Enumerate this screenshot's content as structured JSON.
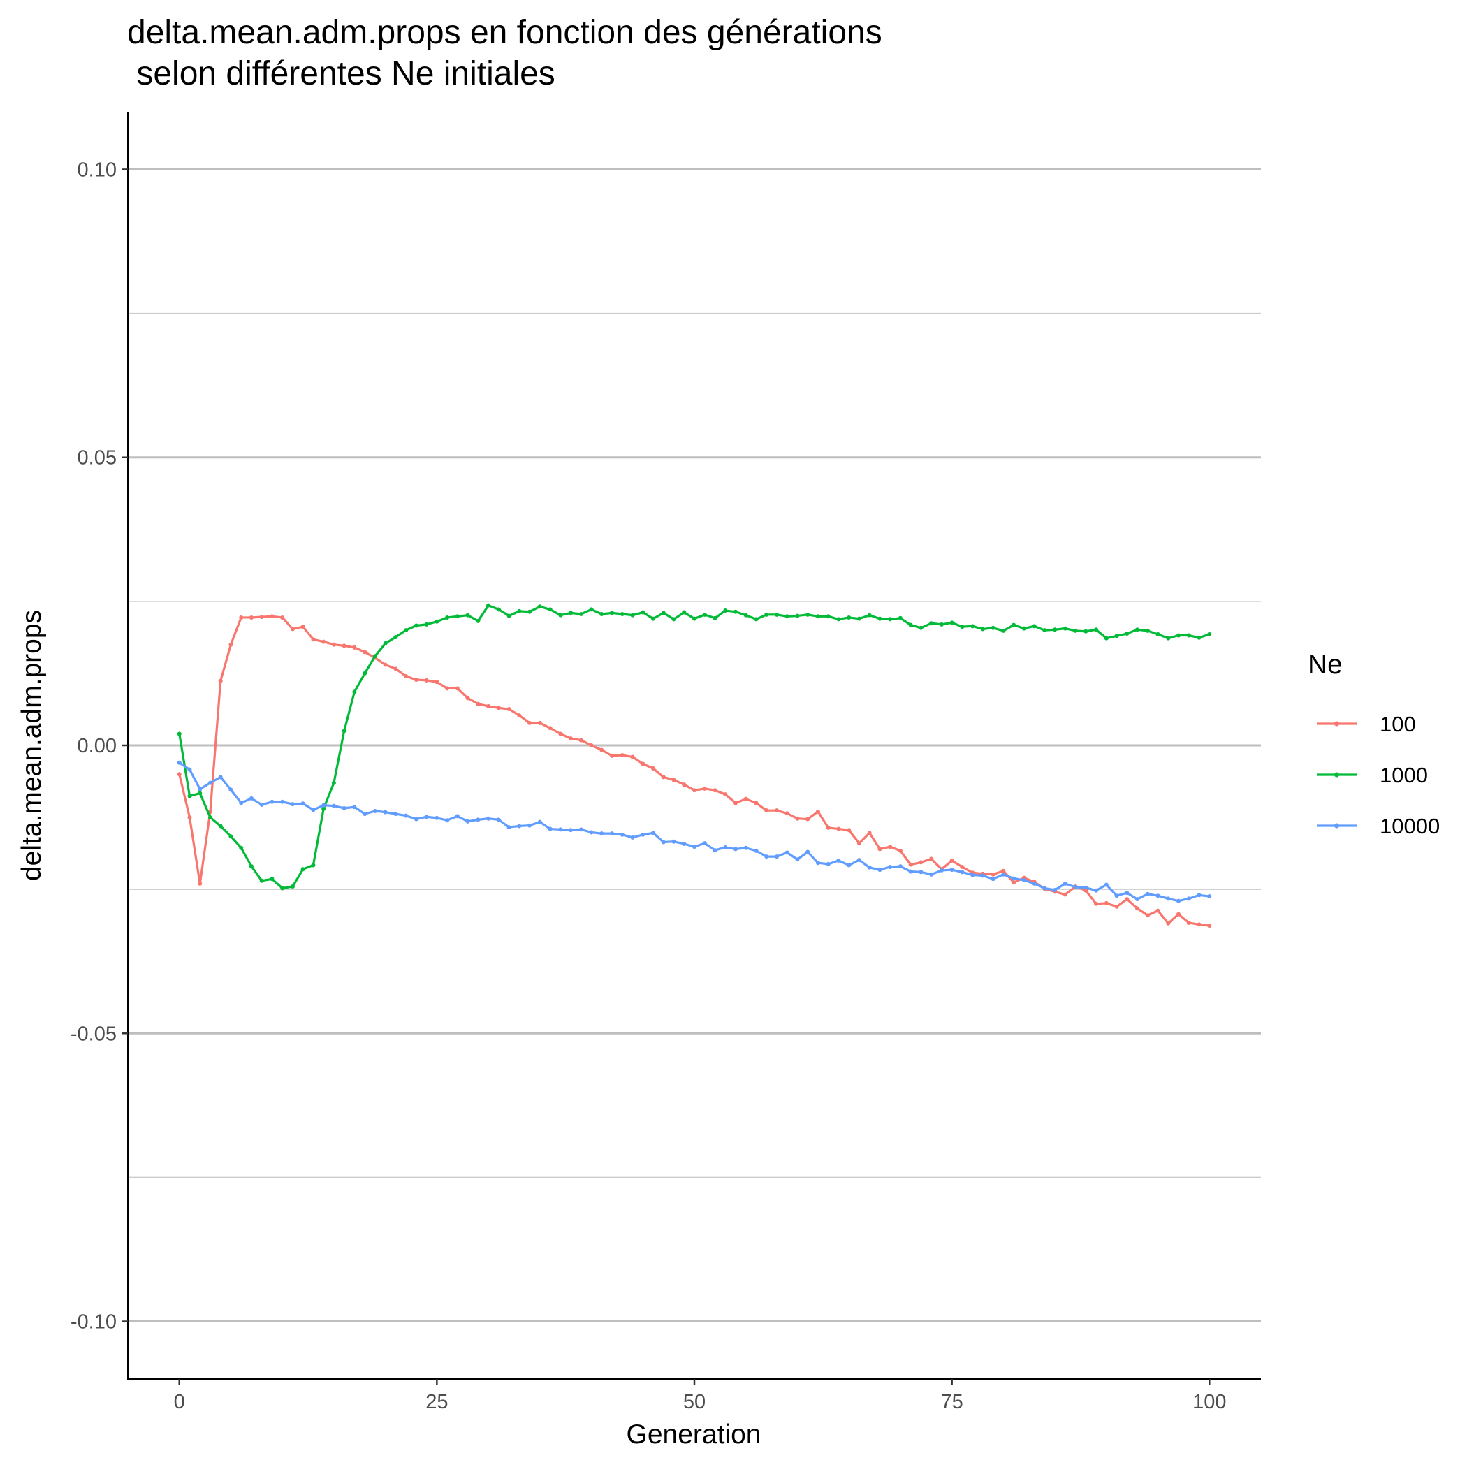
{
  "chart_data": {
    "type": "line",
    "title_lines": [
      "delta.mean.adm.props en fonction des générations",
      " selon différentes Ne initiales"
    ],
    "xlabel": "Generation",
    "ylabel": "delta.mean.adm.props",
    "xlim": [
      -5,
      105
    ],
    "ylim": [
      -0.11,
      0.11
    ],
    "x_ticks": [
      0,
      25,
      50,
      75,
      100
    ],
    "x_tick_labels": [
      "0",
      "25",
      "50",
      "75",
      "100"
    ],
    "y_ticks": [
      -0.1,
      -0.05,
      0.0,
      0.05,
      0.1
    ],
    "y_tick_labels": [
      "-0.10",
      "-0.05",
      "0.00",
      "0.05",
      "0.10"
    ],
    "y_minor_ticks": [
      -0.075,
      -0.025,
      0.025,
      0.075
    ],
    "grid": "horizontal",
    "legend": {
      "title": "Ne",
      "position": "right"
    },
    "x_start": 0,
    "x_step": 1,
    "series": [
      {
        "name": "100",
        "color": "#F8766D",
        "values": [
          -0.005,
          -0.0125,
          -0.024,
          -0.0115,
          0.0112,
          0.0175,
          0.0222,
          0.0222,
          0.0223,
          0.0224,
          0.0222,
          0.0202,
          0.0206,
          0.0184,
          0.018,
          0.0175,
          0.0173,
          0.017,
          0.0162,
          0.0152,
          0.014,
          0.0133,
          0.012,
          0.0114,
          0.0113,
          0.011,
          0.0099,
          0.0099,
          0.0082,
          0.0072,
          0.0068,
          0.0065,
          0.0063,
          0.0052,
          0.0039,
          0.0039,
          0.003,
          0.002,
          0.0012,
          0.0009,
          0.0,
          -0.0008,
          -0.0018,
          -0.0017,
          -0.002,
          -0.0032,
          -0.004,
          -0.0055,
          -0.006,
          -0.0068,
          -0.0078,
          -0.0075,
          -0.0078,
          -0.0085,
          -0.01,
          -0.0093,
          -0.01,
          -0.0113,
          -0.0113,
          -0.0118,
          -0.0127,
          -0.0128,
          -0.0115,
          -0.0143,
          -0.0145,
          -0.0147,
          -0.017,
          -0.0152,
          -0.018,
          -0.0176,
          -0.0183,
          -0.0207,
          -0.0203,
          -0.0197,
          -0.0215,
          -0.02,
          -0.0211,
          -0.0221,
          -0.0223,
          -0.0224,
          -0.0218,
          -0.0238,
          -0.023,
          -0.0237,
          -0.0249,
          -0.0254,
          -0.0259,
          -0.0245,
          -0.0252,
          -0.0275,
          -0.0274,
          -0.028,
          -0.0267,
          -0.0283,
          -0.0295,
          -0.0287,
          -0.0309,
          -0.0293,
          -0.0308,
          -0.0311,
          -0.0313
        ]
      },
      {
        "name": "1000",
        "color": "#00BA38",
        "values": [
          0.002,
          -0.0088,
          -0.0083,
          -0.0125,
          -0.014,
          -0.0158,
          -0.0178,
          -0.021,
          -0.0235,
          -0.0232,
          -0.0248,
          -0.0245,
          -0.0215,
          -0.0208,
          -0.011,
          -0.0065,
          0.0025,
          0.0093,
          0.0125,
          0.0155,
          0.0177,
          0.0188,
          0.02,
          0.0208,
          0.021,
          0.0215,
          0.0222,
          0.0224,
          0.0226,
          0.0216,
          0.0243,
          0.0236,
          0.0225,
          0.0233,
          0.0232,
          0.0241,
          0.0236,
          0.0226,
          0.023,
          0.0228,
          0.0236,
          0.0228,
          0.023,
          0.0228,
          0.0226,
          0.0231,
          0.022,
          0.023,
          0.0219,
          0.0231,
          0.022,
          0.0227,
          0.0221,
          0.0234,
          0.0232,
          0.0226,
          0.0219,
          0.0227,
          0.0227,
          0.0224,
          0.0225,
          0.0227,
          0.0224,
          0.0224,
          0.0219,
          0.0222,
          0.022,
          0.0226,
          0.022,
          0.0219,
          0.0221,
          0.0209,
          0.0204,
          0.0212,
          0.021,
          0.0213,
          0.0206,
          0.0207,
          0.0202,
          0.0204,
          0.0199,
          0.0209,
          0.0203,
          0.0207,
          0.02,
          0.0201,
          0.0203,
          0.0199,
          0.0198,
          0.0201,
          0.0186,
          0.019,
          0.0194,
          0.0201,
          0.0199,
          0.0193,
          0.0186,
          0.0191,
          0.0191,
          0.0187,
          0.0193
        ]
      },
      {
        "name": "10000",
        "color": "#619CFF",
        "values": [
          -0.003,
          -0.0042,
          -0.0076,
          -0.0065,
          -0.0055,
          -0.0077,
          -0.01,
          -0.0092,
          -0.0103,
          -0.0098,
          -0.0098,
          -0.0102,
          -0.0101,
          -0.0112,
          -0.0104,
          -0.0105,
          -0.0109,
          -0.0107,
          -0.0119,
          -0.0114,
          -0.0116,
          -0.0119,
          -0.0122,
          -0.0128,
          -0.0124,
          -0.0126,
          -0.013,
          -0.0123,
          -0.0132,
          -0.0129,
          -0.0127,
          -0.0129,
          -0.0142,
          -0.014,
          -0.0139,
          -0.0133,
          -0.0145,
          -0.0146,
          -0.0147,
          -0.0146,
          -0.0151,
          -0.0153,
          -0.0153,
          -0.0155,
          -0.016,
          -0.0155,
          -0.0152,
          -0.0168,
          -0.0167,
          -0.0171,
          -0.0176,
          -0.017,
          -0.0182,
          -0.0177,
          -0.018,
          -0.0178,
          -0.0183,
          -0.0193,
          -0.0193,
          -0.0186,
          -0.0198,
          -0.0185,
          -0.0204,
          -0.0206,
          -0.02,
          -0.0208,
          -0.0199,
          -0.0212,
          -0.0216,
          -0.0211,
          -0.021,
          -0.0219,
          -0.022,
          -0.0224,
          -0.0217,
          -0.0216,
          -0.022,
          -0.0225,
          -0.0226,
          -0.0232,
          -0.0224,
          -0.0231,
          -0.0234,
          -0.024,
          -0.0248,
          -0.0251,
          -0.024,
          -0.0246,
          -0.0247,
          -0.0252,
          -0.0242,
          -0.0261,
          -0.0256,
          -0.0267,
          -0.0258,
          -0.0261,
          -0.0266,
          -0.027,
          -0.0266,
          -0.026,
          -0.0262
        ]
      }
    ]
  }
}
